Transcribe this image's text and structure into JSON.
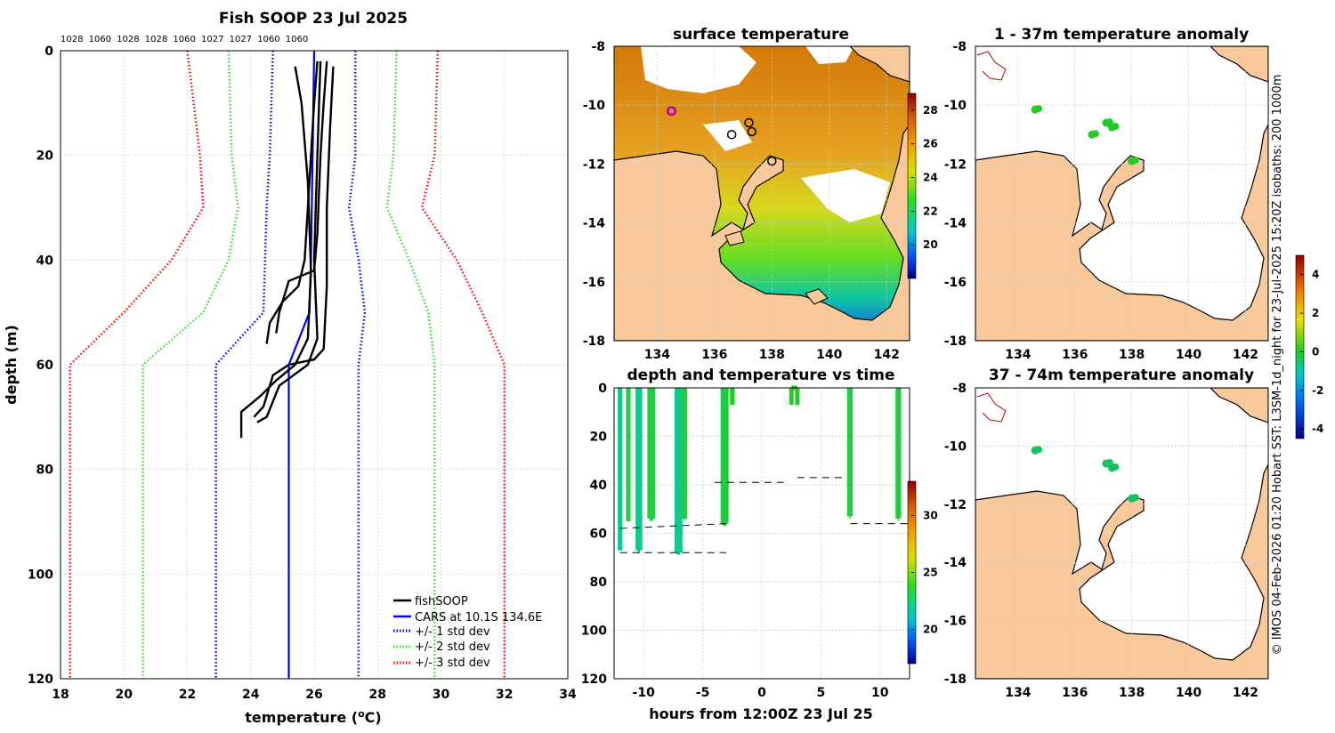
{
  "profile": {
    "title": "Fish SOOP 23 Jul 2025",
    "density_labels": [
      "1028",
      "1060",
      "1028",
      "1028",
      "1060",
      "1027",
      "1027",
      "1060",
      "1060"
    ],
    "xlabel": "temperature (",
    "xlabel_sup": "o",
    "xlabel_end": "C)",
    "ylabel": "depth (m)",
    "legend": [
      "fishSOOP",
      "CARS at 10.1S 134.6E",
      "+/- 1 std dev",
      "+/- 2 std dev",
      "+/- 3 std dev"
    ]
  },
  "sst_map": {
    "title": "surface temperature"
  },
  "time_plot": {
    "title": "depth and temperature vs time",
    "xlabel": "hours from 12:00Z 23 Jul 25"
  },
  "anom1": {
    "title": "1 - 37m temperature anomaly"
  },
  "anom2": {
    "title": "37 - 74m temperature anomaly"
  },
  "credit": "© IMOS 04-Feb-2026 01:20 Hobart SST: L3SM-1d_night for 23-Jul-2025 15:20Z isobaths: 200  1000m",
  "colors": {
    "fish": "#000000",
    "cars": "#0000ff",
    "std1": "#0000ff",
    "std2": "#33dd33",
    "std3": "#ff0000",
    "land": "#f9c89b"
  },
  "chart_data": [
    {
      "type": "line",
      "title": "Fish SOOP 23 Jul 2025",
      "xlabel": "temperature (oC)",
      "ylabel": "depth (m)",
      "xlim": [
        18,
        34
      ],
      "ylim": [
        120,
        0
      ],
      "xticks": [
        18,
        20,
        22,
        24,
        26,
        28,
        30,
        32,
        34
      ],
      "yticks": [
        0,
        20,
        40,
        60,
        80,
        100,
        120
      ],
      "series": [
        {
          "name": "CARS at 10.1S 134.6E",
          "style": "solid",
          "color": "cars",
          "points": [
            [
              26.0,
              0
            ],
            [
              25.95,
              20
            ],
            [
              25.9,
              40
            ],
            [
              25.85,
              50
            ],
            [
              25.2,
              60
            ],
            [
              25.2,
              120
            ]
          ]
        },
        {
          "name": "+/- 1 std dev (low)",
          "style": "dotted",
          "color": "std1",
          "points": [
            [
              24.7,
              0
            ],
            [
              24.6,
              20
            ],
            [
              24.5,
              30
            ],
            [
              24.4,
              50
            ],
            [
              22.9,
              60
            ],
            [
              22.9,
              120
            ]
          ]
        },
        {
          "name": "+/- 1 std dev (high)",
          "style": "dotted",
          "color": "std1",
          "points": [
            [
              27.3,
              0
            ],
            [
              27.3,
              20
            ],
            [
              27.1,
              30
            ],
            [
              27.4,
              40
            ],
            [
              27.6,
              50
            ],
            [
              27.4,
              60
            ],
            [
              27.4,
              120
            ]
          ]
        },
        {
          "name": "+/- 2 std dev (low)",
          "style": "dotted",
          "color": "std2",
          "points": [
            [
              23.3,
              0
            ],
            [
              23.4,
              20
            ],
            [
              23.6,
              30
            ],
            [
              23.3,
              40
            ],
            [
              22.5,
              50
            ],
            [
              20.6,
              60
            ],
            [
              20.6,
              120
            ]
          ]
        },
        {
          "name": "+/- 2 std dev (high)",
          "style": "dotted",
          "color": "std2",
          "points": [
            [
              28.6,
              0
            ],
            [
              28.5,
              20
            ],
            [
              28.3,
              30
            ],
            [
              29.0,
              40
            ],
            [
              29.6,
              50
            ],
            [
              29.8,
              60
            ],
            [
              29.8,
              120
            ]
          ]
        },
        {
          "name": "+/- 3 std dev (low)",
          "style": "dotted",
          "color": "std3",
          "points": [
            [
              22.0,
              0
            ],
            [
              22.4,
              20
            ],
            [
              22.5,
              30
            ],
            [
              21.5,
              40
            ],
            [
              20.0,
              50
            ],
            [
              18.3,
              60
            ],
            [
              18.3,
              120
            ]
          ]
        },
        {
          "name": "+/- 3 std dev (high)",
          "style": "dotted",
          "color": "std3",
          "points": [
            [
              29.9,
              0
            ],
            [
              29.8,
              20
            ],
            [
              29.4,
              30
            ],
            [
              30.5,
              40
            ],
            [
              31.3,
              50
            ],
            [
              32.0,
              60
            ],
            [
              32.0,
              120
            ]
          ]
        },
        {
          "name": "fishSOOP",
          "style": "solid",
          "color": "fish",
          "points": [
            [
              26.1,
              2
            ],
            [
              26.0,
              10
            ],
            [
              25.9,
              20
            ],
            [
              25.8,
              30
            ],
            [
              25.7,
              40
            ],
            [
              25.5,
              45
            ],
            [
              25.0,
              48
            ],
            [
              24.6,
              52
            ],
            [
              24.5,
              56
            ]
          ]
        },
        {
          "name": "fishSOOP",
          "style": "solid",
          "color": "fish",
          "points": [
            [
              26.4,
              2
            ],
            [
              26.3,
              10
            ],
            [
              26.2,
              20
            ],
            [
              26.1,
              35
            ],
            [
              26.0,
              42
            ],
            [
              25.2,
              44
            ],
            [
              24.9,
              50
            ],
            [
              24.8,
              54
            ]
          ]
        },
        {
          "name": "fishSOOP",
          "style": "solid",
          "color": "fish",
          "points": [
            [
              26.6,
              3
            ],
            [
              26.5,
              15
            ],
            [
              26.4,
              30
            ],
            [
              26.4,
              45
            ],
            [
              26.3,
              57
            ],
            [
              26.0,
              59
            ],
            [
              25.2,
              60
            ],
            [
              24.7,
              62
            ],
            [
              24.4,
              68
            ],
            [
              24.1,
              70
            ]
          ]
        },
        {
          "name": "fishSOOP",
          "style": "solid",
          "color": "fish",
          "points": [
            [
              25.4,
              3
            ],
            [
              25.6,
              10
            ],
            [
              25.8,
              25
            ],
            [
              25.9,
              42
            ],
            [
              25.8,
              55
            ],
            [
              25.4,
              60
            ],
            [
              24.8,
              63
            ],
            [
              24.3,
              66
            ],
            [
              23.7,
              69
            ],
            [
              23.7,
              74
            ]
          ]
        },
        {
          "name": "fishSOOP",
          "style": "solid",
          "color": "fish",
          "points": [
            [
              26.2,
              2
            ],
            [
              26.1,
              20
            ],
            [
              26.0,
              40
            ],
            [
              26.1,
              55
            ],
            [
              25.8,
              60
            ],
            [
              24.9,
              64
            ],
            [
              24.5,
              70
            ],
            [
              24.2,
              71
            ]
          ]
        }
      ]
    },
    {
      "type": "scatter",
      "title": "depth and temperature vs time",
      "xlabel": "hours from 12:00Z 23 Jul 25",
      "xlim": [
        -12.5,
        12.5
      ],
      "ylim": [
        120,
        0
      ],
      "xticks": [
        -10,
        -5,
        0,
        5,
        10
      ],
      "yticks": [
        0,
        20,
        40,
        60,
        80,
        100,
        120
      ],
      "colorbar": {
        "min": 17,
        "max": 33,
        "ticks": [
          20,
          25,
          30
        ]
      },
      "series": [
        {
          "name": "fishing depth (m)",
          "values": [
            [
              -12,
              0
            ],
            [
              -12,
              67
            ],
            [
              -11.3,
              0
            ],
            [
              -11.3,
              55
            ],
            [
              -10.5,
              0
            ],
            [
              -10.3,
              67
            ],
            [
              -9.5,
              0
            ],
            [
              -9.2,
              54
            ],
            [
              -7.2,
              0
            ],
            [
              -6.9,
              68
            ],
            [
              -6.6,
              0
            ],
            [
              -6.5,
              54
            ],
            [
              -3.3,
              0
            ],
            [
              -3.0,
              56
            ],
            [
              -2.5,
              0
            ],
            [
              -2.5,
              7
            ],
            [
              2.5,
              7
            ],
            [
              3.0,
              0
            ],
            [
              7.4,
              0
            ],
            [
              7.5,
              53
            ],
            [
              11.5,
              0
            ],
            [
              11.6,
              54
            ]
          ]
        },
        {
          "name": "bottom depth (m)",
          "values": [
            [
              -12,
              68
            ],
            [
              -3,
              68
            ],
            [
              -12,
              58
            ],
            [
              -3,
              56
            ],
            [
              -4,
              39
            ],
            [
              2,
              39
            ],
            [
              3,
              37
            ],
            [
              7,
              37
            ],
            [
              7.5,
              56
            ],
            [
              12.5,
              56
            ]
          ]
        }
      ]
    },
    {
      "type": "heatmap",
      "title": "surface temperature",
      "xlim": [
        132.5,
        142.8
      ],
      "ylim": [
        -18,
        -8
      ],
      "xticks": [
        134,
        136,
        138,
        140,
        142
      ],
      "yticks": [
        -8,
        -10,
        -12,
        -14,
        -16,
        -18
      ],
      "colorbar": {
        "min": 18,
        "max": 29,
        "ticks": [
          20,
          22,
          24,
          26,
          28
        ]
      },
      "stations": [
        [
          134.5,
          -10.2
        ],
        [
          136.6,
          -11.0
        ],
        [
          137.2,
          -10.6
        ],
        [
          137.3,
          -10.9
        ],
        [
          138.0,
          -11.9
        ]
      ]
    },
    {
      "type": "scatter",
      "title": "1 - 37m temperature anomaly",
      "xlim": [
        132.5,
        142.8
      ],
      "ylim": [
        -18,
        -8
      ],
      "xticks": [
        134,
        136,
        138,
        140,
        142
      ],
      "yticks": [
        -8,
        -10,
        -12,
        -14,
        -16,
        -18
      ],
      "colorbar": {
        "min": -4.5,
        "max": 5,
        "ticks": [
          -4,
          -2,
          0,
          2,
          4
        ]
      },
      "points": [
        [
          134.6,
          -10.15,
          0.3
        ],
        [
          136.6,
          -11.0,
          0.2
        ],
        [
          137.1,
          -10.6,
          0.2
        ],
        [
          137.3,
          -10.75,
          0.2
        ],
        [
          138.0,
          -11.9,
          0.3
        ]
      ]
    },
    {
      "type": "scatter",
      "title": "37 - 74m temperature anomaly",
      "xlim": [
        132.5,
        142.8
      ],
      "ylim": [
        -18,
        -8
      ],
      "xticks": [
        134,
        136,
        138,
        140,
        142
      ],
      "yticks": [
        -8,
        -10,
        -12,
        -14,
        -16,
        -18
      ],
      "points": [
        [
          134.6,
          -10.15,
          -0.3
        ],
        [
          137.1,
          -10.6,
          -0.4
        ],
        [
          137.3,
          -10.75,
          -0.4
        ],
        [
          138.0,
          -11.8,
          -0.2
        ]
      ]
    }
  ]
}
